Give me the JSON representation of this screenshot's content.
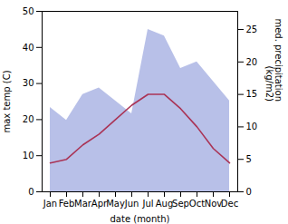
{
  "chart_data": {
    "type": "line",
    "categories": [
      "Jan",
      "Feb",
      "Mar",
      "Apr",
      "May",
      "Jun",
      "Jul",
      "Aug",
      "Sep",
      "Oct",
      "Nov",
      "Dec"
    ],
    "xlabel": "date (month)",
    "ylabel": "max temp (C)",
    "y2label": "med. precipitation\n(kg/m2)",
    "ylim": [
      0,
      50
    ],
    "yticks": [
      0,
      10,
      20,
      30,
      40,
      50
    ],
    "y2lim": [
      0,
      27.8
    ],
    "y2ticks": [
      0,
      5,
      10,
      15,
      20,
      25
    ],
    "series": [
      {
        "type": "area",
        "axis": "y2",
        "color": "#b8c0e8",
        "values": [
          13,
          11,
          15,
          16,
          14,
          12,
          25,
          24,
          19,
          20,
          17,
          14
        ]
      },
      {
        "type": "line",
        "color": "#aa3355",
        "values": [
          8,
          9,
          13,
          16,
          20,
          24,
          27,
          27,
          23,
          18,
          12,
          8
        ]
      }
    ]
  }
}
